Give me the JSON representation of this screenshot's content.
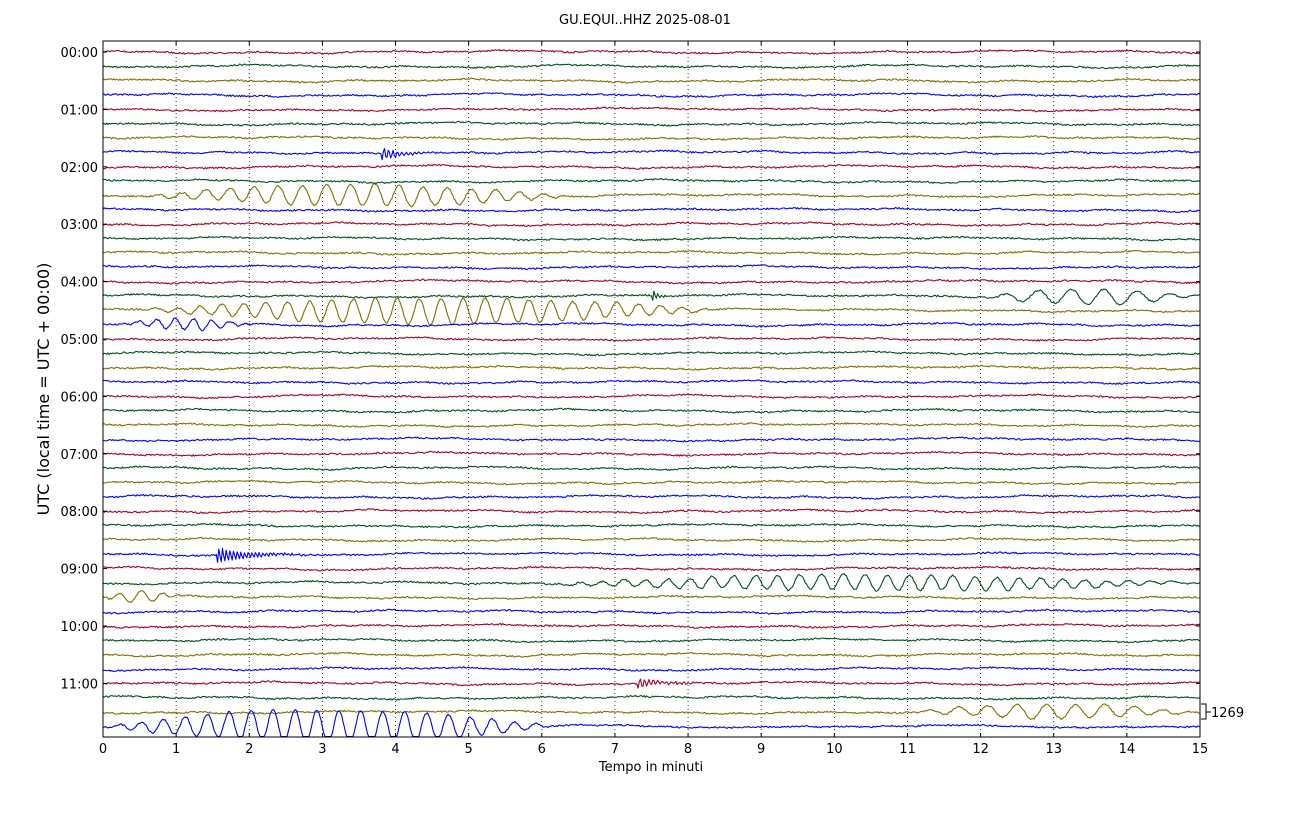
{
  "chart_data": {
    "type": "line",
    "title": "GU.EQUI..HHZ 2025-08-01",
    "xlabel": "Tempo in minuti",
    "ylabel": "UTC (local time = UTC + 00:00)",
    "xlim": [
      0,
      15
    ],
    "x_ticks": [
      "0",
      "1",
      "2",
      "3",
      "4",
      "5",
      "6",
      "7",
      "8",
      "9",
      "10",
      "11",
      "12",
      "13",
      "14",
      "15"
    ],
    "y_ticks": [
      "00:00",
      "01:00",
      "02:00",
      "03:00",
      "04:00",
      "05:00",
      "06:00",
      "07:00",
      "08:00",
      "09:00",
      "10:00",
      "11:00"
    ],
    "trace_interval_minutes": 15,
    "trace_count": 48,
    "trace_colors": [
      "#a50026",
      "#00501e",
      "#7f7000",
      "#0000ff"
    ],
    "scale_label": "1269",
    "grid": "vertical-dotted",
    "events": [
      {
        "trace": 7,
        "start_min": 3.8,
        "end_min": 4.9,
        "amplitude": 0.45,
        "period_min": 0.06,
        "kind": "local-spike"
      },
      {
        "trace": 10,
        "start_min": 0.5,
        "end_min": 6.5,
        "amplitude": 0.75,
        "period_min": 0.33,
        "kind": "surface-wave"
      },
      {
        "trace": 17,
        "start_min": 7.5,
        "end_min": 7.8,
        "amplitude": 0.5,
        "period_min": 0.05,
        "kind": "local-spike"
      },
      {
        "trace": 17,
        "start_min": 12.0,
        "end_min": 15.0,
        "amplitude": 0.55,
        "period_min": 0.45,
        "kind": "surface-wave"
      },
      {
        "trace": 18,
        "start_min": 0.5,
        "end_min": 8.5,
        "amplitude": 0.9,
        "period_min": 0.3,
        "kind": "surface-wave"
      },
      {
        "trace": 19,
        "start_min": 0.3,
        "end_min": 2.0,
        "amplitude": 0.4,
        "period_min": 0.25,
        "kind": "surface-wave"
      },
      {
        "trace": 35,
        "start_min": 1.55,
        "end_min": 3.2,
        "amplitude": 0.6,
        "period_min": 0.05,
        "kind": "local-spike"
      },
      {
        "trace": 37,
        "start_min": 6.0,
        "end_min": 15.0,
        "amplitude": 0.55,
        "period_min": 0.3,
        "kind": "surface-wave"
      },
      {
        "trace": 38,
        "start_min": 0.0,
        "end_min": 1.0,
        "amplitude": 0.4,
        "period_min": 0.3,
        "kind": "surface-wave"
      },
      {
        "trace": 44,
        "start_min": 7.3,
        "end_min": 8.5,
        "amplitude": 0.4,
        "period_min": 0.06,
        "kind": "local-spike"
      },
      {
        "trace": 46,
        "start_min": 11.0,
        "end_min": 15.0,
        "amplitude": 0.5,
        "period_min": 0.4,
        "kind": "surface-wave"
      },
      {
        "trace": 47,
        "start_min": 0.0,
        "end_min": 6.2,
        "amplitude": 1.2,
        "period_min": 0.3,
        "kind": "surface-wave"
      }
    ]
  }
}
